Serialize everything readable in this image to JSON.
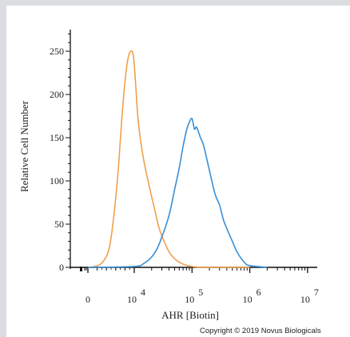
{
  "chart_data": {
    "type": "line",
    "title": "",
    "xlabel": "AHR [Biotin]",
    "ylabel": "Relative Cell Number",
    "x_scale": "biexponential",
    "xlim": [
      -3000,
      10000000
    ],
    "ylim": [
      0,
      275
    ],
    "y_ticks": [
      0,
      50,
      100,
      150,
      200,
      250
    ],
    "x_tick_labels": [
      {
        "value": 0,
        "base": "0",
        "exp": ""
      },
      {
        "value": 10000,
        "base": "10",
        "exp": "4"
      },
      {
        "value": 100000,
        "base": "10",
        "exp": "5"
      },
      {
        "value": 1000000,
        "base": "10",
        "exp": "6"
      },
      {
        "value": 10000000,
        "base": "10",
        "exp": "7"
      }
    ],
    "grid": false,
    "series": [
      {
        "color": "#f0a04b",
        "x": [
          0,
          1500,
          3000,
          4500,
          5500,
          6500,
          7300,
          8000,
          8600,
          9200,
          9800,
          10500,
          11500,
          13000,
          15000,
          18000,
          22000,
          27000,
          33000,
          40000,
          50000,
          60000,
          75000,
          100000,
          150000,
          300000,
          1000000
        ],
        "y": [
          0,
          1,
          5,
          20,
          55,
          110,
          170,
          215,
          240,
          250,
          245,
          215,
          175,
          145,
          120,
          95,
          70,
          45,
          30,
          18,
          10,
          6,
          3,
          1,
          0,
          0,
          0
        ]
      },
      {
        "color": "#3a8fd6",
        "x": [
          0,
          10000,
          15000,
          20000,
          25000,
          30000,
          40000,
          50000,
          60000,
          70000,
          80000,
          90000,
          100000,
          110000,
          120000,
          140000,
          160000,
          200000,
          250000,
          300000,
          350000,
          400000,
          500000,
          600000,
          800000,
          1000000,
          2000000
        ],
        "y": [
          0,
          1,
          5,
          12,
          22,
          35,
          60,
          90,
          115,
          140,
          158,
          168,
          172,
          160,
          162,
          150,
          140,
          112,
          85,
          72,
          55,
          45,
          30,
          18,
          6,
          2,
          0
        ]
      }
    ]
  },
  "copyright": "Copyright © 2019 Novus Biologicals"
}
